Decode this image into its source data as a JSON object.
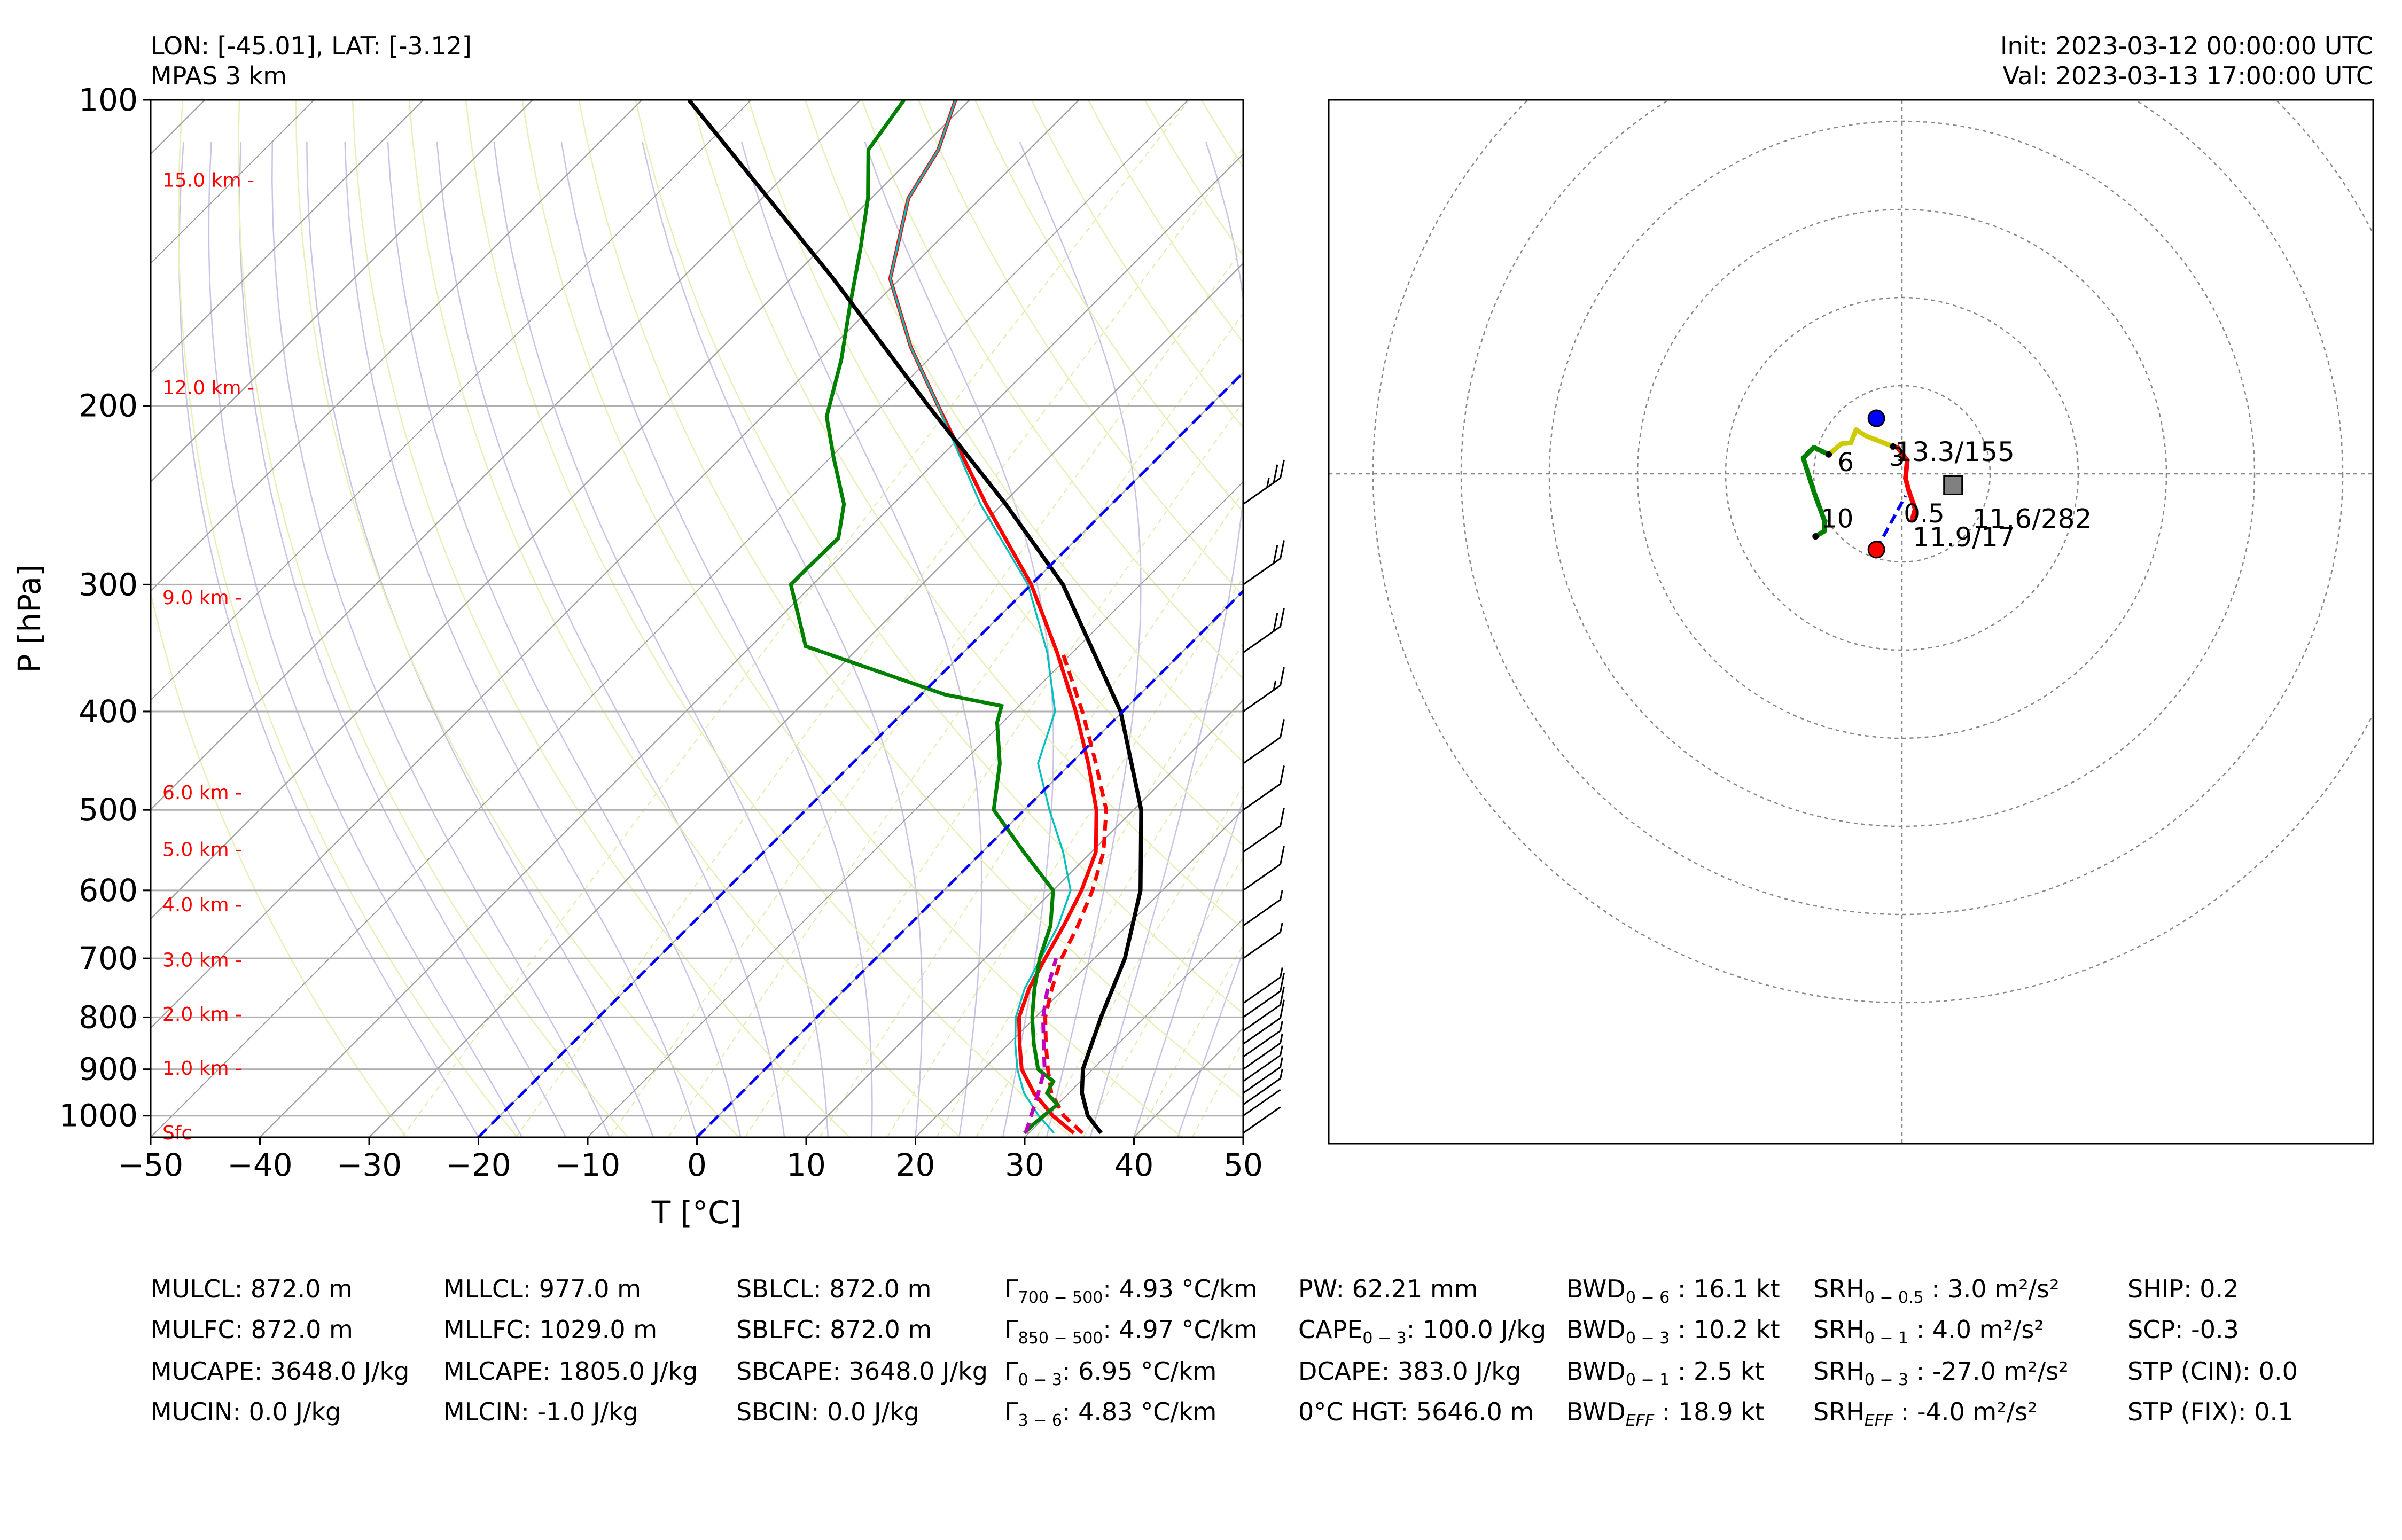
{
  "header": {
    "location": "LON: [-45.01], LAT: [-3.12]",
    "model": "MPAS 3 km",
    "init": "Init: 2023-03-12 00:00:00 UTC",
    "valid": "Val: 2023-03-13 17:00:00 UTC"
  },
  "chart_data": [
    {
      "type": "line",
      "subtype": "skew-t log-p",
      "xlabel": "T [°C]",
      "ylabel": "P [hPa]",
      "xlim": [
        -50,
        50
      ],
      "ylim": [
        1050,
        100
      ],
      "y_scale": "log",
      "x_ticks": [
        "−50",
        "−40",
        "−30",
        "−20",
        "−10",
        "0",
        "10",
        "20",
        "30",
        "40",
        "50"
      ],
      "x_tick_values": [
        -50,
        -40,
        -30,
        -20,
        -10,
        0,
        10,
        20,
        30,
        40,
        50
      ],
      "y_ticks": [
        "100",
        "200",
        "300",
        "400",
        "500",
        "600",
        "700",
        "800",
        "900",
        "1000"
      ],
      "y_tick_values": [
        100,
        200,
        300,
        400,
        500,
        600,
        700,
        800,
        900,
        1000
      ],
      "grid": true,
      "height_labels": [
        {
          "p": 1040,
          "label": "Sfc"
        },
        {
          "p": 898,
          "label": "1.0 km -"
        },
        {
          "p": 795,
          "label": "2.0 km -"
        },
        {
          "p": 703,
          "label": "3.0 km -"
        },
        {
          "p": 620,
          "label": "4.0 km -"
        },
        {
          "p": 547,
          "label": "5.0 km -"
        },
        {
          "p": 481,
          "label": "6.0 km -"
        },
        {
          "p": 309,
          "label": "9.0 km -"
        },
        {
          "p": 192,
          "label": "12.0 km -"
        },
        {
          "p": 120,
          "label": "15.0 km -"
        }
      ],
      "series": [
        {
          "color": "#ff0000",
          "style": "solid",
          "points": [
            [
              1040,
              34.1
            ],
            [
              1000,
              30.6
            ],
            [
              950,
              26.8
            ],
            [
              900,
              23.5
            ],
            [
              850,
              21.0
            ],
            [
              800,
              18.5
            ],
            [
              750,
              16.8
            ],
            [
              700,
              15.5
            ],
            [
              650,
              14.2
            ],
            [
              600,
              12.6
            ],
            [
              550,
              10.4
            ],
            [
              500,
              6.6
            ],
            [
              450,
              1.6
            ],
            [
              400,
              -4.3
            ],
            [
              350,
              -11.4
            ],
            [
              300,
              -20.0
            ],
            [
              250,
              -31.5
            ],
            [
              200,
              -44.9
            ],
            [
              175,
              -52.8
            ],
            [
              150,
              -60.9
            ],
            [
              125,
              -66.6
            ],
            [
              112,
              -68.3
            ],
            [
              100,
              -71.3
            ]
          ]
        },
        {
          "color": "#ff0000",
          "style": "dashed",
          "points": [
            [
              1040,
              34.9
            ],
            [
              1000,
              31.6
            ],
            [
              950,
              28.4
            ],
            [
              900,
              25.9
            ],
            [
              850,
              23.4
            ],
            [
              800,
              20.9
            ],
            [
              750,
              18.9
            ],
            [
              700,
              17.0
            ],
            [
              650,
              15.5
            ],
            [
              600,
              13.6
            ],
            [
              550,
              11.1
            ],
            [
              500,
              7.5
            ],
            [
              450,
              2.3
            ],
            [
              400,
              -3.7
            ],
            [
              350,
              -10.9
            ]
          ]
        },
        {
          "color": "#00bfbf",
          "style": "solid",
          "points": [
            [
              1040,
              32.3
            ],
            [
              1000,
              29.3
            ],
            [
              950,
              25.9
            ],
            [
              900,
              23.1
            ],
            [
              850,
              20.6
            ],
            [
              800,
              18.2
            ],
            [
              750,
              16.4
            ],
            [
              700,
              15.1
            ],
            [
              650,
              13.7
            ],
            [
              600,
              11.6
            ],
            [
              550,
              7.4
            ],
            [
              500,
              2.3
            ],
            [
              450,
              -3.0
            ],
            [
              400,
              -6.2
            ],
            [
              350,
              -12.3
            ],
            [
              300,
              -20.3
            ],
            [
              250,
              -32.0
            ],
            [
              200,
              -44.9
            ],
            [
              175,
              -52.8
            ],
            [
              150,
              -60.9
            ],
            [
              125,
              -66.6
            ],
            [
              112,
              -68.3
            ],
            [
              100,
              -71.3
            ]
          ]
        },
        {
          "color": "#008000",
          "style": "solid",
          "points": [
            [
              1040,
              29.6
            ],
            [
              1020,
              29.6
            ],
            [
              975,
              30.0
            ],
            [
              950,
              28.0
            ],
            [
              925,
              27.5
            ],
            [
              900,
              25.0
            ],
            [
              850,
              22.3
            ],
            [
              800,
              19.7
            ],
            [
              750,
              17.3
            ],
            [
              700,
              15.0
            ],
            [
              650,
              13.0
            ],
            [
              600,
              10.0
            ],
            [
              550,
              3.8
            ],
            [
              500,
              -2.8
            ],
            [
              450,
              -6.5
            ],
            [
              410,
              -10.5
            ],
            [
              395,
              -11.6
            ],
            [
              385,
              -17.8
            ],
            [
              345,
              -35.0
            ],
            [
              300,
              -42.0
            ],
            [
              290,
              -42.0
            ],
            [
              270,
              -41.9
            ],
            [
              250,
              -44.5
            ],
            [
              225,
              -49.7
            ],
            [
              205,
              -54.1
            ],
            [
              180,
              -58.0
            ],
            [
              160,
              -62.0
            ],
            [
              140,
              -66.4
            ],
            [
              125,
              -70.3
            ],
            [
              112,
              -74.7
            ],
            [
              100,
              -76.0
            ]
          ]
        },
        {
          "color": "#000000",
          "style": "solid",
          "points": [
            [
              1040,
              36.6
            ],
            [
              1000,
              33.8
            ],
            [
              950,
              31.2
            ],
            [
              900,
              29.1
            ],
            [
              800,
              26.0
            ],
            [
              700,
              22.8
            ],
            [
              600,
              18.0
            ],
            [
              500,
              10.7
            ],
            [
              400,
              -0.2
            ],
            [
              300,
              -17.1
            ],
            [
              250,
              -29.7
            ],
            [
              200,
              -45.8
            ],
            [
              150,
              -66.1
            ],
            [
              100,
              -95.7
            ]
          ]
        },
        {
          "color": "#bf00bf",
          "style": "dashed",
          "points": [
            [
              1040,
              29.7
            ],
            [
              950,
              27.2
            ],
            [
              900,
              25.6
            ],
            [
              850,
              23.2
            ],
            [
              800,
              20.7
            ],
            [
              750,
              18.5
            ],
            [
              700,
              16.5
            ]
          ]
        },
        {
          "color": "#0000ff",
          "style": "dashed",
          "label_role": "isotherm 0",
          "points": [
            [
              1050,
              0
            ],
            [
              100,
              0
            ]
          ]
        },
        {
          "color": "#0000ff",
          "style": "dashed",
          "label_role": "isotherm -20",
          "points": [
            [
              1050,
              -20
            ],
            [
              100,
              -20
            ]
          ]
        }
      ],
      "wind_barbs": [
        {
          "p": 1040,
          "speed_kt": 2
        },
        {
          "p": 1000,
          "speed_kt": 4
        },
        {
          "p": 975,
          "speed_kt": 8
        },
        {
          "p": 950,
          "speed_kt": 8
        },
        {
          "p": 925,
          "speed_kt": 8
        },
        {
          "p": 900,
          "speed_kt": 9
        },
        {
          "p": 875,
          "speed_kt": 9
        },
        {
          "p": 850,
          "speed_kt": 10
        },
        {
          "p": 825,
          "speed_kt": 10
        },
        {
          "p": 800,
          "speed_kt": 10
        },
        {
          "p": 775,
          "speed_kt": 8
        },
        {
          "p": 700,
          "speed_kt": 5
        },
        {
          "p": 650,
          "speed_kt": 5
        },
        {
          "p": 600,
          "speed_kt": 10
        },
        {
          "p": 550,
          "speed_kt": 10
        },
        {
          "p": 500,
          "speed_kt": 10
        },
        {
          "p": 450,
          "speed_kt": 10
        },
        {
          "p": 400,
          "speed_kt": 15
        },
        {
          "p": 350,
          "speed_kt": 20
        },
        {
          "p": 300,
          "speed_kt": 20
        },
        {
          "p": 250,
          "speed_kt": 25
        }
      ]
    },
    {
      "type": "line",
      "subtype": "hodograph",
      "rings": [
        10,
        20,
        30,
        40,
        50,
        60
      ],
      "grid": true,
      "segments": [
        {
          "color": "#ff0000",
          "points": [
            [
              1.1,
              -5.4
            ],
            [
              1.5,
              -4.0
            ],
            [
              0.8,
              -2.0
            ],
            [
              0.4,
              -0.5
            ],
            [
              0.6,
              1.5
            ],
            [
              -0.5,
              3.0
            ],
            [
              -1.0,
              3.1
            ]
          ]
        },
        {
          "color": "#cccc00",
          "points": [
            [
              -1.0,
              3.1
            ],
            [
              -4.1,
              4.3
            ],
            [
              -5.2,
              5.0
            ],
            [
              -5.8,
              3.5
            ],
            [
              -6.9,
              3.4
            ],
            [
              -8.3,
              2.2
            ]
          ]
        },
        {
          "color": "#008000",
          "points": [
            [
              -8.3,
              2.2
            ],
            [
              -10.0,
              3.0
            ],
            [
              -11.2,
              1.8
            ],
            [
              -10.0,
              -2.0
            ],
            [
              -8.8,
              -5.3
            ],
            [
              -8.8,
              -6.5
            ],
            [
              -9.8,
              -7.1
            ]
          ]
        },
        {
          "color": "#0000ff",
          "style": "dashed",
          "points": [
            [
              -2.9,
              -8.6
            ],
            [
              0.4,
              -2.5
            ]
          ]
        }
      ],
      "height_marks": [
        {
          "label": "0.5",
          "u": 0.2,
          "v": -5.5
        },
        {
          "label": "3",
          "u": -1.5,
          "v": 0.9
        },
        {
          "label": "6",
          "u": -7.3,
          "v": 0.3
        },
        {
          "label": "10",
          "u": -9.2,
          "v": -6.1
        }
      ],
      "markers": [
        {
          "kind": "circle",
          "color": "#0000ff",
          "u": -2.9,
          "v": 6.3,
          "label": "13.3/155"
        },
        {
          "kind": "circle",
          "color": "#ff0000",
          "u": -2.9,
          "v": -8.6,
          "label": ""
        },
        {
          "kind": "square",
          "color": "#808080",
          "u": 5.8,
          "v": -1.3,
          "label": "11.6/282"
        },
        {
          "kind": "label",
          "color": "#000000",
          "u": 1.2,
          "v": -5.5,
          "label": "11.9/17"
        }
      ]
    }
  ],
  "indices": {
    "col1": [
      "MULCL: 872.0 m",
      "MULFC: 872.0 m",
      "MUCAPE: 3648.0 J/kg",
      "MUCIN: 0.0 J/kg"
    ],
    "col2": [
      "MLLCL: 977.0 m",
      "MLLFC: 1029.0 m",
      "MLCAPE: 1805.0 J/kg",
      "MLCIN: -1.0 J/kg"
    ],
    "col3": [
      "SBLCL: 872.0 m",
      "SBLFC: 872.0 m",
      "SBCAPE: 3648.0 J/kg",
      "SBCIN: 0.0 J/kg"
    ],
    "col4": [
      {
        "sym": "Γ",
        "sub": "700 − 500",
        "val": ": 4.93 °C/km"
      },
      {
        "sym": "Γ",
        "sub": "850 − 500",
        "val": ": 4.97 °C/km"
      },
      {
        "sym": "Γ",
        "sub": "0 − 3",
        "val": ": 6.95 °C/km"
      },
      {
        "sym": "Γ",
        "sub": "3 − 6",
        "val": ": 4.83 °C/km"
      }
    ],
    "col5": [
      {
        "sym": "PW: 62.21 mm",
        "sub": "",
        "val": ""
      },
      {
        "sym": "CAPE",
        "sub": "0 − 3",
        "val": ": 100.0 J/kg"
      },
      {
        "sym": "DCAPE: 383.0 J/kg",
        "sub": "",
        "val": ""
      },
      {
        "sym": "0°C HGT: 5646.0 m",
        "sub": "",
        "val": ""
      }
    ],
    "col6": [
      {
        "sym": "BWD",
        "sub": "0 − 6",
        "val": " : 16.1 kt"
      },
      {
        "sym": "BWD",
        "sub": "0 − 3",
        "val": " : 10.2 kt"
      },
      {
        "sym": "BWD",
        "sub": "0 − 1",
        "val": " : 2.5 kt"
      },
      {
        "sym": "BWD",
        "sub": "EFF",
        "val": " : 18.9 kt"
      }
    ],
    "col7": [
      {
        "sym": "SRH",
        "sub": "0 − 0.5",
        "val": " : 3.0 m²/s²"
      },
      {
        "sym": "SRH",
        "sub": "0 − 1",
        "val": " : 4.0 m²/s²"
      },
      {
        "sym": "SRH",
        "sub": "0 − 3",
        "val": " : -27.0 m²/s²"
      },
      {
        "sym": "SRH",
        "sub": "EFF",
        "val": " : -4.0 m²/s²"
      }
    ],
    "col8": [
      "SHIP: 0.2",
      "SCP: -0.3",
      "STP (CIN): 0.0",
      "STP (FIX): 0.1"
    ]
  }
}
